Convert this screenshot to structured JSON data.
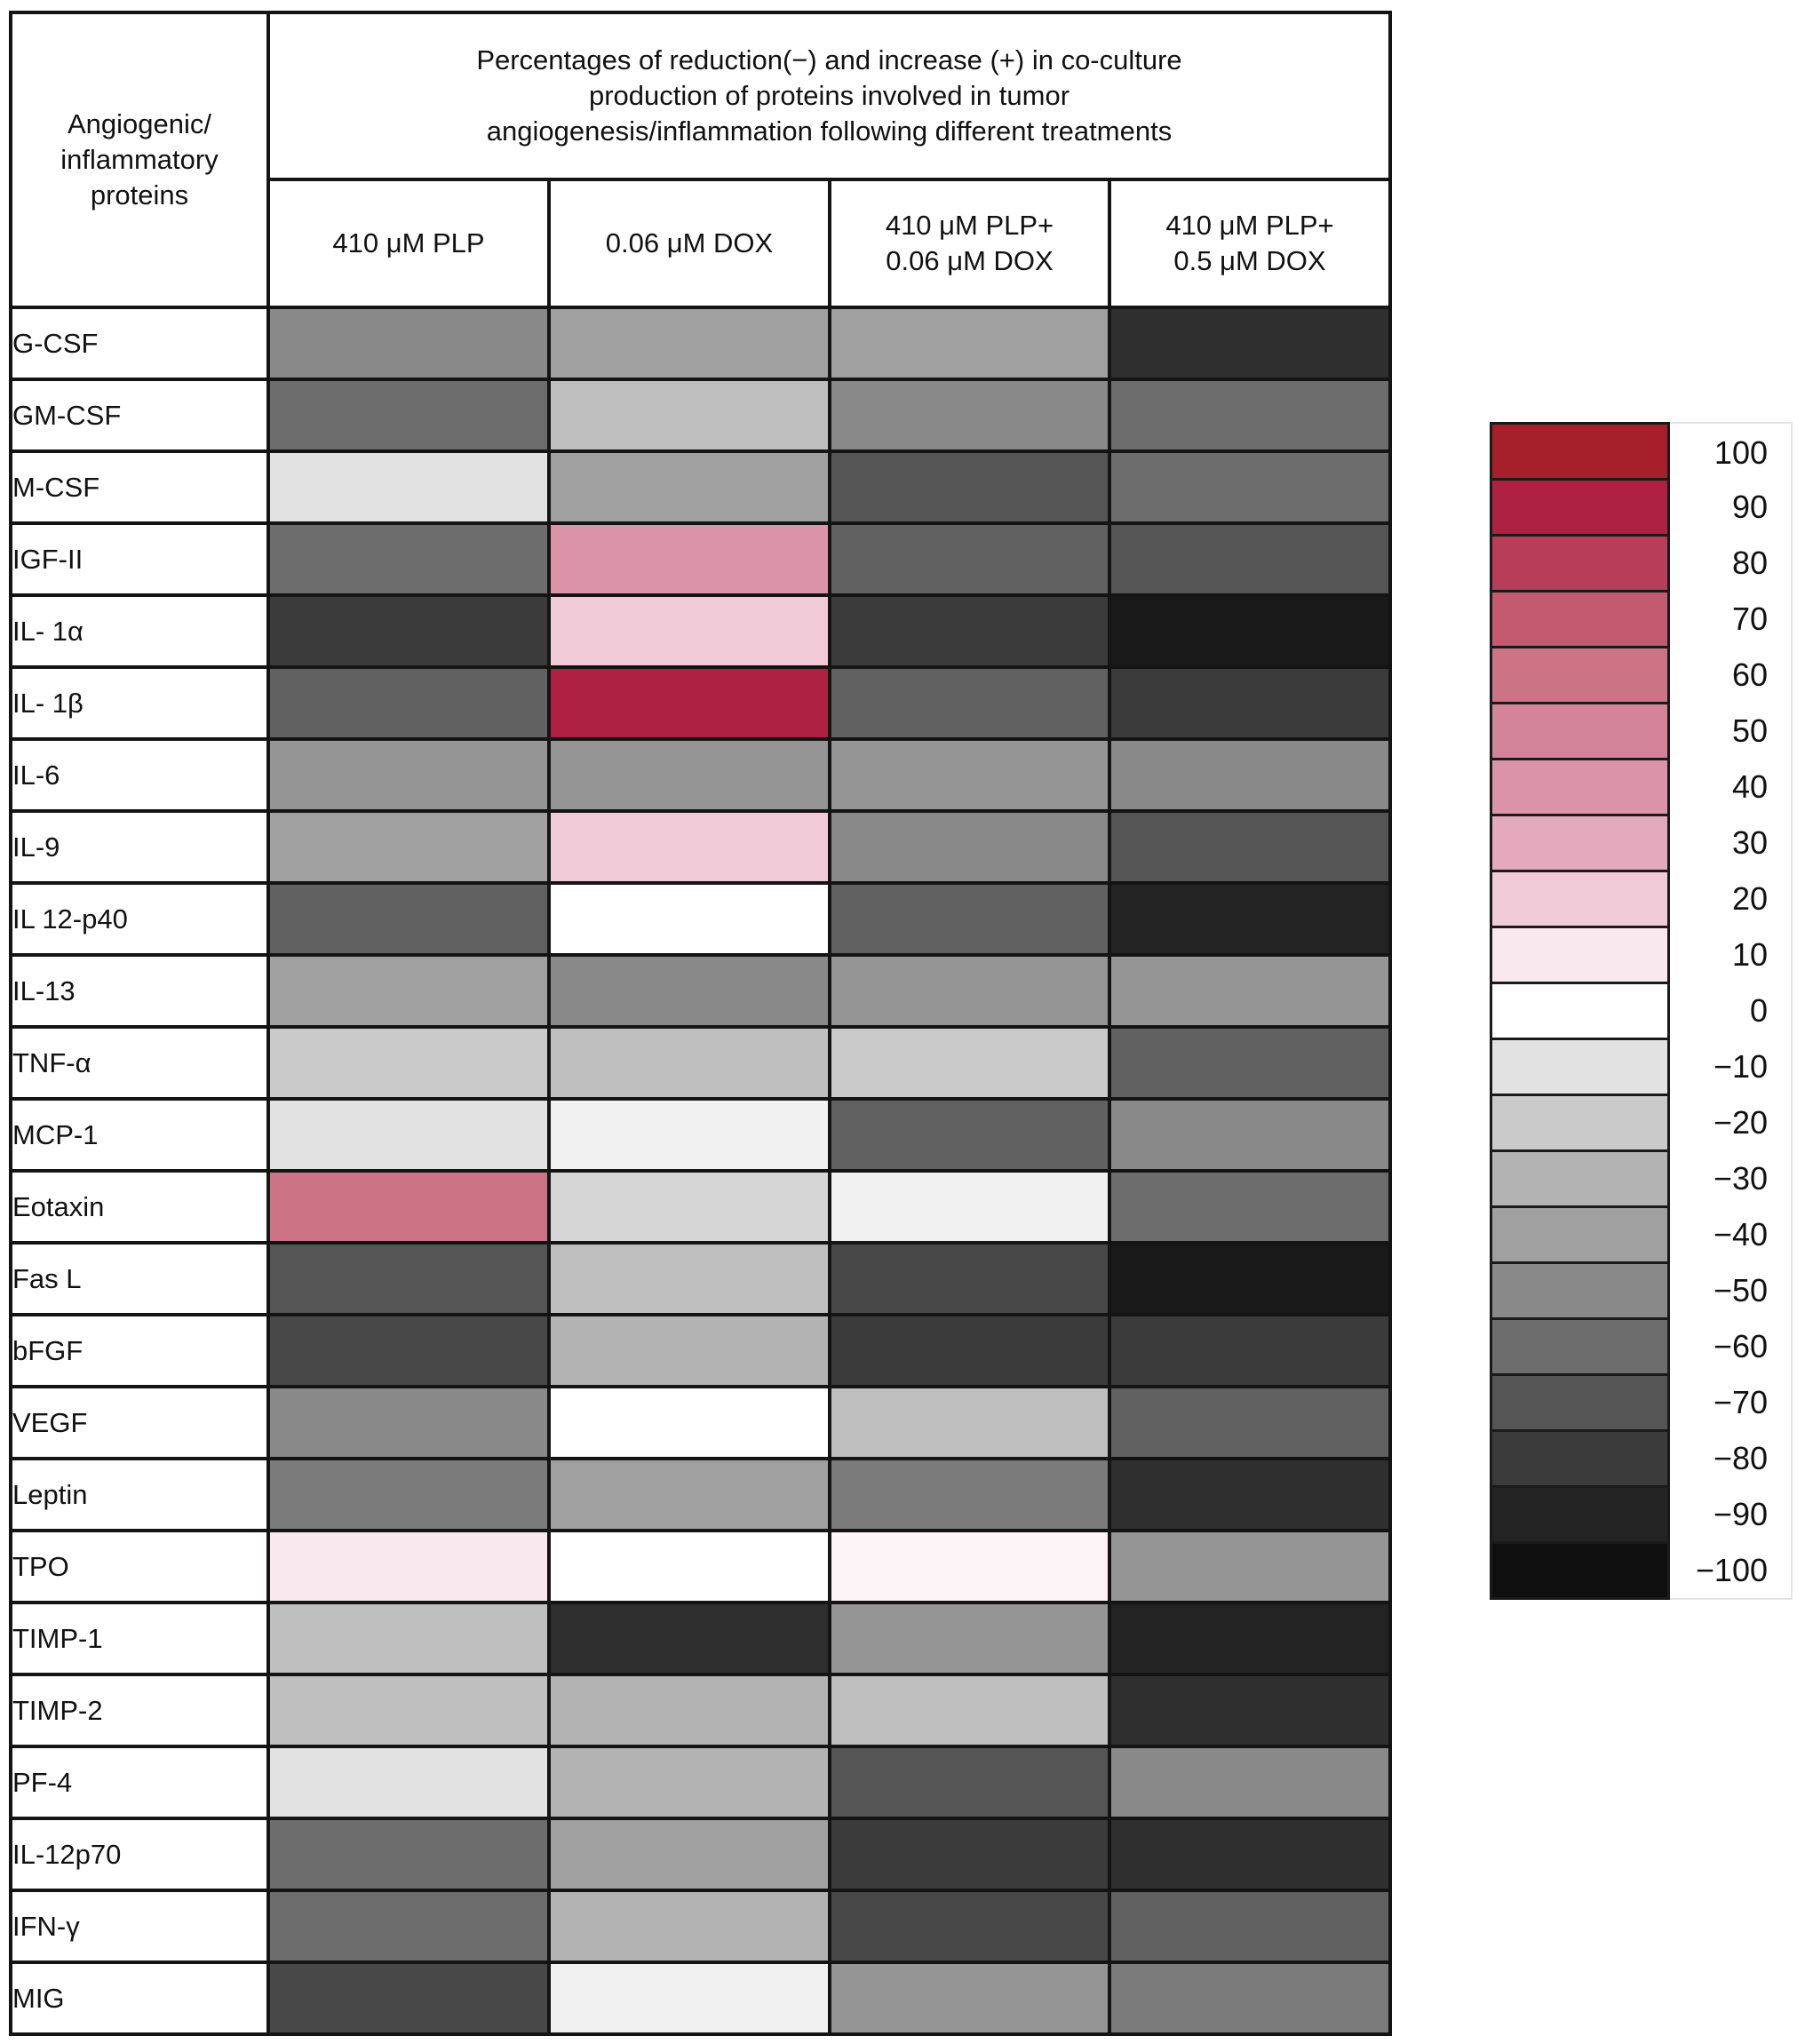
{
  "figure": {
    "row_header": "Angiogenic/\ninflammatory\nproteins",
    "title": "Percentages of reduction(−) and increase (+) in co-culture\nproduction of proteins involved in tumor\nangiogenesis/inflammation following different treatments"
  },
  "chart_data": {
    "type": "heatmap",
    "title": "Percentages of reduction(−) and increase (+) in co-culture production of proteins involved in tumor angiogenesis/inflammation following different treatments",
    "row_label_header": "Angiogenic/inflammatory proteins",
    "columns": [
      "410 μM PLP",
      "0.06 μM DOX",
      "410 μM PLP+\n0.06 μM DOX",
      "410 μM PLP+\n0.5 μM DOX"
    ],
    "rows": [
      "G-CSF",
      "GM-CSF",
      "M-CSF",
      "IGF-II",
      "IL- 1α",
      "IL- 1β",
      "IL-6",
      "IL-9",
      "IL 12-p40",
      "IL-13",
      "TNF-α",
      "MCP-1",
      "Eotaxin",
      "Fas L",
      "bFGF",
      "VEGF",
      "Leptin",
      "TPO",
      "TIMP-1",
      "TIMP-2",
      "PF-4",
      "IL-12p70",
      "IFN-γ",
      "MIG"
    ],
    "values": [
      [
        -50,
        -40,
        -40,
        -85
      ],
      [
        -60,
        -25,
        -50,
        -60
      ],
      [
        -10,
        -40,
        -70,
        -60
      ],
      [
        -60,
        40,
        -65,
        -70
      ],
      [
        -80,
        20,
        -80,
        -95
      ],
      [
        -65,
        90,
        -65,
        -80
      ],
      [
        -45,
        -45,
        -45,
        -50
      ],
      [
        -40,
        20,
        -50,
        -70
      ],
      [
        -65,
        0,
        -65,
        -90
      ],
      [
        -40,
        -50,
        -45,
        -45
      ],
      [
        -20,
        -25,
        -20,
        -65
      ],
      [
        -10,
        -5,
        -65,
        -50
      ],
      [
        60,
        -15,
        -5,
        -60
      ],
      [
        -70,
        -25,
        -75,
        -95
      ],
      [
        -75,
        -30,
        -80,
        -80
      ],
      [
        -50,
        0,
        -25,
        -65
      ],
      [
        -55,
        -40,
        -55,
        -85
      ],
      [
        10,
        0,
        5,
        -45
      ],
      [
        -25,
        -85,
        -45,
        -90
      ],
      [
        -25,
        -30,
        -25,
        -85
      ],
      [
        -10,
        -30,
        -70,
        -50
      ],
      [
        -60,
        -40,
        -80,
        -85
      ],
      [
        -60,
        -30,
        -75,
        -65
      ],
      [
        -75,
        -5,
        -45,
        -55
      ]
    ],
    "colorbar": {
      "min": -100,
      "max": 100,
      "step": 10,
      "legend_position": "right",
      "stops": [
        {
          "value": 100,
          "label": "100",
          "color": "#a6202b"
        },
        {
          "value": 90,
          "label": "90",
          "color": "#ae2140"
        },
        {
          "value": 80,
          "label": "80",
          "color": "#b73d58"
        },
        {
          "value": 70,
          "label": "70",
          "color": "#c35a70"
        },
        {
          "value": 60,
          "label": "60",
          "color": "#cc7386"
        },
        {
          "value": 50,
          "label": "50",
          "color": "#d38499"
        },
        {
          "value": 40,
          "label": "40",
          "color": "#db93a9"
        },
        {
          "value": 30,
          "label": "30",
          "color": "#e3aabd"
        },
        {
          "value": 20,
          "label": "20",
          "color": "#f1cad7"
        },
        {
          "value": 10,
          "label": "10",
          "color": "#f9e8ee"
        },
        {
          "value": 0,
          "label": "0",
          "color": "#ffffff"
        },
        {
          "value": -10,
          "label": "−10",
          "color": "#e2e2e2"
        },
        {
          "value": -20,
          "label": "−20",
          "color": "#cacaca"
        },
        {
          "value": -30,
          "label": "−30",
          "color": "#b3b3b3"
        },
        {
          "value": -40,
          "label": "−40",
          "color": "#a0a0a0"
        },
        {
          "value": -50,
          "label": "−50",
          "color": "#898989"
        },
        {
          "value": -60,
          "label": "−60",
          "color": "#6d6d6d"
        },
        {
          "value": -70,
          "label": "−70",
          "color": "#555555"
        },
        {
          "value": -80,
          "label": "−80",
          "color": "#3b3b3b"
        },
        {
          "value": -90,
          "label": "−90",
          "color": "#232323"
        },
        {
          "value": -100,
          "label": "−100",
          "color": "#0f0f0f"
        }
      ]
    }
  }
}
